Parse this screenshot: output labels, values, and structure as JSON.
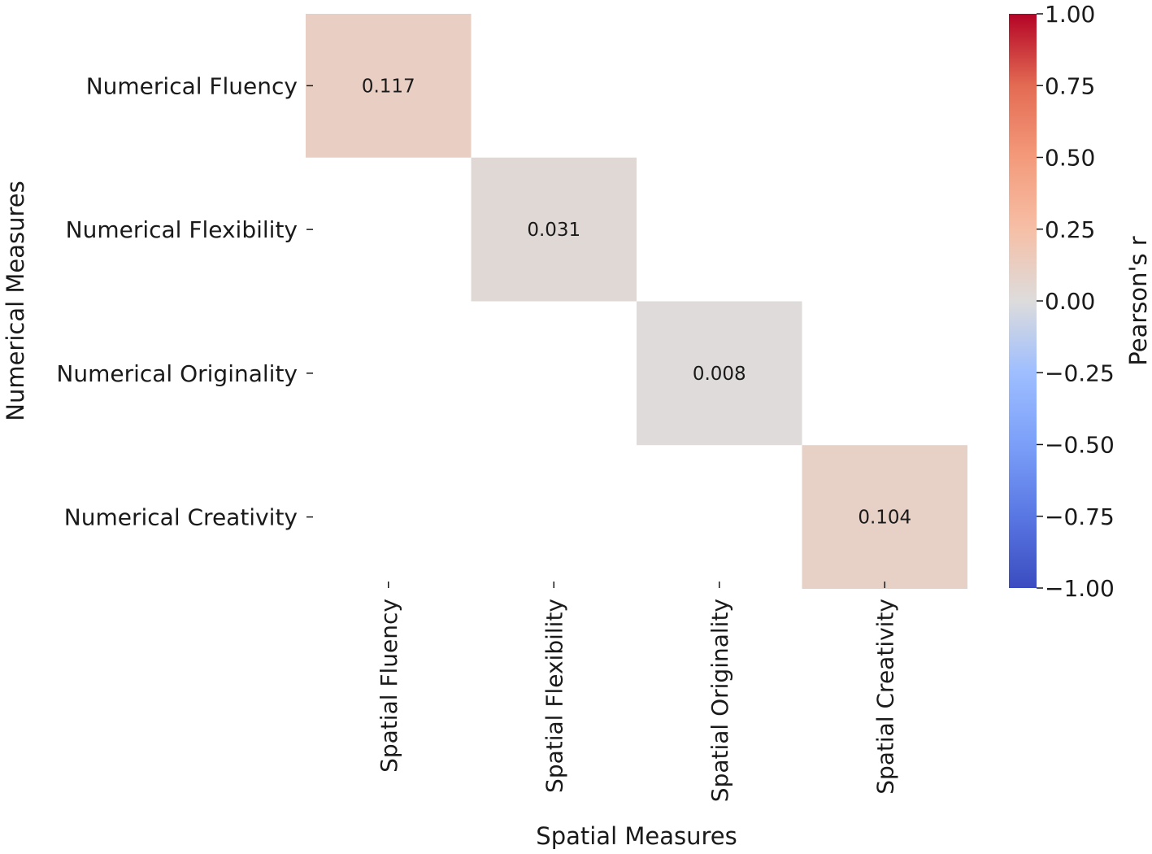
{
  "chart_data": {
    "type": "heatmap",
    "xlabel": "Spatial Measures",
    "ylabel": "Numerical Measures",
    "x_categories": [
      "Spatial Fluency",
      "Spatial Flexibility",
      "Spatial Originality",
      "Spatial Creativity"
    ],
    "y_categories": [
      "Numerical Fluency",
      "Numerical Flexibility",
      "Numerical Originality",
      "Numerical Creativity"
    ],
    "cells": [
      {
        "row": 0,
        "col": 0,
        "value": 0.117,
        "label": "0.117"
      },
      {
        "row": 1,
        "col": 1,
        "value": 0.031,
        "label": "0.031"
      },
      {
        "row": 2,
        "col": 2,
        "value": 0.008,
        "label": "0.008"
      },
      {
        "row": 3,
        "col": 3,
        "value": 0.104,
        "label": "0.104"
      }
    ],
    "masked_cells": "off-diagonal",
    "colorbar": {
      "label": "Pearson's r",
      "colormap": "coolwarm",
      "range": [
        -1.0,
        1.0
      ],
      "ticks": [
        "1.00",
        "0.75",
        "0.50",
        "0.25",
        "0.00",
        "−0.25",
        "−0.50",
        "−0.75",
        "−1.00"
      ],
      "tick_values": [
        1.0,
        0.75,
        0.5,
        0.25,
        0.0,
        -0.25,
        -0.5,
        -0.75,
        -1.0
      ]
    },
    "grid": false
  }
}
